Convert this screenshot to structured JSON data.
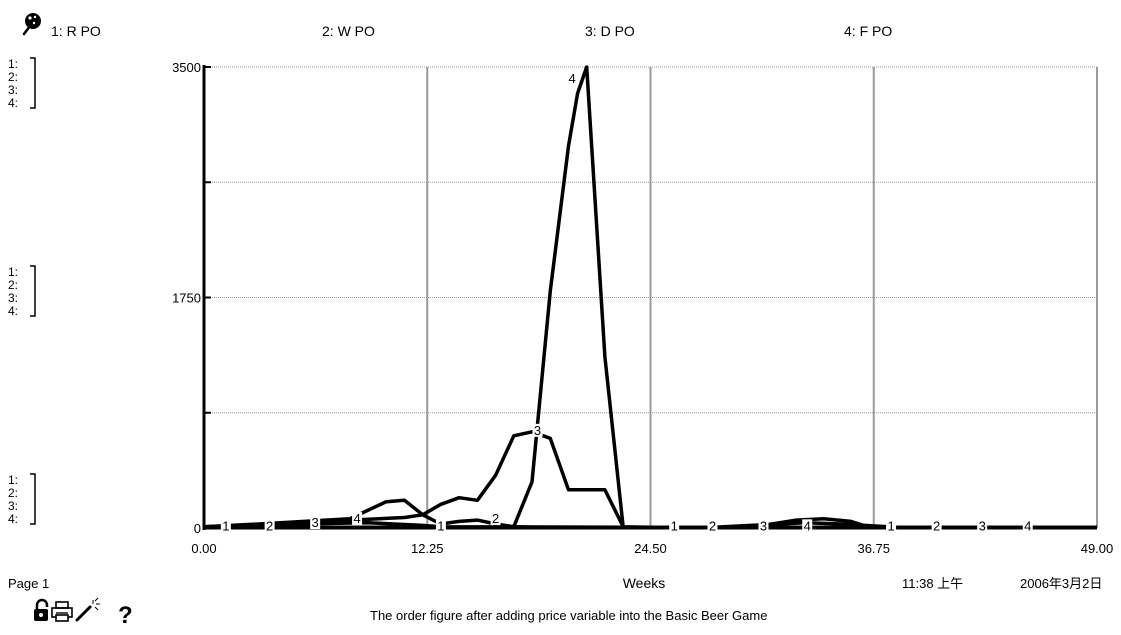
{
  "header": {
    "legend": [
      {
        "label": "1: R PO"
      },
      {
        "label": "2: W PO"
      },
      {
        "label": "3: D PO"
      },
      {
        "label": "4: F PO"
      }
    ]
  },
  "scale_markers": [
    "1:",
    "2:",
    "3:",
    "4:"
  ],
  "footer": {
    "page_label": "Page 1",
    "time": "11:38 上午",
    "date": "2006年3月2日",
    "caption": "The order figure after adding price variable into the Basic Beer Game",
    "help_glyph": "?"
  },
  "icons": [
    "pin-icon",
    "lock-icon",
    "print-icon",
    "magic-wand-icon",
    "help-icon"
  ],
  "chart_data": {
    "type": "line",
    "xlabel": "Weeks",
    "ylabel": "",
    "xlim": [
      0,
      49
    ],
    "ylim": [
      0,
      3500
    ],
    "x_ticks": [
      "0.00",
      "12.25",
      "24.50",
      "36.75",
      "49.00"
    ],
    "y_ticks": [
      "0",
      "1750",
      "3500"
    ],
    "grid": true,
    "series": [
      {
        "name": "1: R PO",
        "marker": "1",
        "x": [
          0,
          5,
          9,
          12,
          13,
          23,
          49
        ],
        "y": [
          10,
          30,
          40,
          20,
          10,
          5,
          5
        ]
      },
      {
        "name": "2: W PO",
        "marker": "2",
        "x": [
          0,
          3,
          8,
          10,
          11,
          12,
          13,
          14,
          15,
          16,
          17,
          18,
          23,
          24.5,
          28,
          30,
          33,
          35,
          38,
          49
        ],
        "y": [
          10,
          30,
          70,
          200,
          210,
          100,
          30,
          50,
          60,
          30,
          10,
          5,
          5,
          5,
          5,
          20,
          40,
          30,
          5,
          5
        ]
      },
      {
        "name": "3: D PO",
        "marker": "3",
        "x": [
          0,
          5,
          8,
          11,
          12,
          13,
          14,
          15,
          16,
          17,
          18,
          19,
          20,
          21,
          22,
          23,
          24.5,
          30,
          32.5,
          34,
          35.5,
          36.5,
          49
        ],
        "y": [
          5,
          30,
          60,
          80,
          100,
          180,
          230,
          210,
          400,
          700,
          730,
          680,
          290,
          290,
          290,
          10,
          5,
          5,
          60,
          70,
          50,
          5,
          5
        ]
      },
      {
        "name": "4: F PO",
        "marker": "4",
        "x": [
          0,
          15,
          16,
          17,
          18,
          19,
          20,
          20.5,
          21,
          22,
          23,
          24.5,
          49
        ],
        "y": [
          5,
          5,
          5,
          10,
          350,
          1800,
          2900,
          3300,
          3500,
          1300,
          5,
          5,
          5
        ]
      }
    ],
    "series_markers": [
      [
        [
          1.2,
          5
        ],
        [
          13,
          5
        ],
        [
          25.8,
          5
        ],
        [
          37.7,
          5
        ]
      ],
      [
        [
          3.6,
          5
        ],
        [
          16,
          60
        ],
        [
          27.9,
          5
        ],
        [
          40.2,
          5
        ]
      ],
      [
        [
          6.1,
          30
        ],
        [
          18.3,
          730
        ],
        [
          30.7,
          5
        ],
        [
          42.7,
          5
        ]
      ],
      [
        [
          8.4,
          60
        ],
        [
          20.2,
          3400
        ],
        [
          33.1,
          5
        ],
        [
          45.2,
          5
        ]
      ]
    ]
  }
}
